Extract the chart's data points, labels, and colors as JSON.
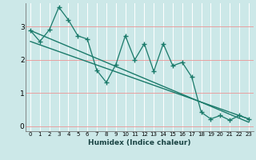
{
  "xlabel": "Humidex (Indice chaleur)",
  "bg_color": "#cce8e8",
  "grid_color_v": "#ffffff",
  "grid_color_h": "#e8a0a0",
  "line_color": "#1a7a6a",
  "xlim": [
    -0.5,
    23.5
  ],
  "ylim": [
    -0.15,
    3.7
  ],
  "xticks": [
    0,
    1,
    2,
    3,
    4,
    5,
    6,
    7,
    8,
    9,
    10,
    11,
    12,
    13,
    14,
    15,
    16,
    17,
    18,
    19,
    20,
    21,
    22,
    23
  ],
  "yticks": [
    0,
    1,
    2,
    3
  ],
  "zigzag_x": [
    0,
    1,
    2,
    3,
    4,
    5,
    6,
    7,
    8,
    9,
    10,
    11,
    12,
    13,
    14,
    15,
    16,
    17,
    18,
    19,
    20,
    21,
    22,
    23
  ],
  "zigzag_y": [
    2.88,
    2.55,
    2.9,
    3.58,
    3.2,
    2.72,
    2.62,
    1.68,
    1.32,
    1.85,
    2.72,
    2.0,
    2.48,
    1.65,
    2.48,
    1.82,
    1.92,
    1.48,
    0.42,
    0.22,
    0.32,
    0.18,
    0.32,
    0.22
  ],
  "line1_x": [
    0,
    23
  ],
  "line1_y": [
    2.88,
    0.12
  ],
  "line2_x": [
    0,
    23
  ],
  "line2_y": [
    2.55,
    0.22
  ]
}
